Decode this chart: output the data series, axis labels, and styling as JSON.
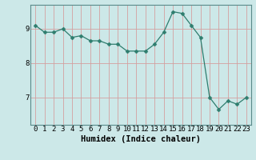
{
  "x": [
    0,
    1,
    2,
    3,
    4,
    5,
    6,
    7,
    8,
    9,
    10,
    11,
    12,
    13,
    14,
    15,
    16,
    17,
    18,
    19,
    20,
    21,
    22,
    23
  ],
  "y": [
    9.1,
    8.9,
    8.9,
    9.0,
    8.75,
    8.8,
    8.65,
    8.65,
    8.55,
    8.55,
    8.35,
    8.35,
    8.35,
    8.55,
    8.9,
    9.5,
    9.45,
    9.1,
    8.75,
    7.0,
    6.65,
    6.9,
    6.8,
    7.0
  ],
  "line_color": "#2e7d6e",
  "marker": "D",
  "marker_size": 2.5,
  "bg_color": "#cce8e8",
  "grid_color": "#d4a0a0",
  "xlabel": "Humidex (Indice chaleur)",
  "ylim": [
    6.2,
    9.7
  ],
  "xlim": [
    -0.5,
    23.5
  ],
  "yticks": [
    7,
    8,
    9
  ],
  "xticks": [
    0,
    1,
    2,
    3,
    4,
    5,
    6,
    7,
    8,
    9,
    10,
    11,
    12,
    13,
    14,
    15,
    16,
    17,
    18,
    19,
    20,
    21,
    22,
    23
  ],
  "tick_fontsize": 6.5,
  "xlabel_fontsize": 7.5
}
